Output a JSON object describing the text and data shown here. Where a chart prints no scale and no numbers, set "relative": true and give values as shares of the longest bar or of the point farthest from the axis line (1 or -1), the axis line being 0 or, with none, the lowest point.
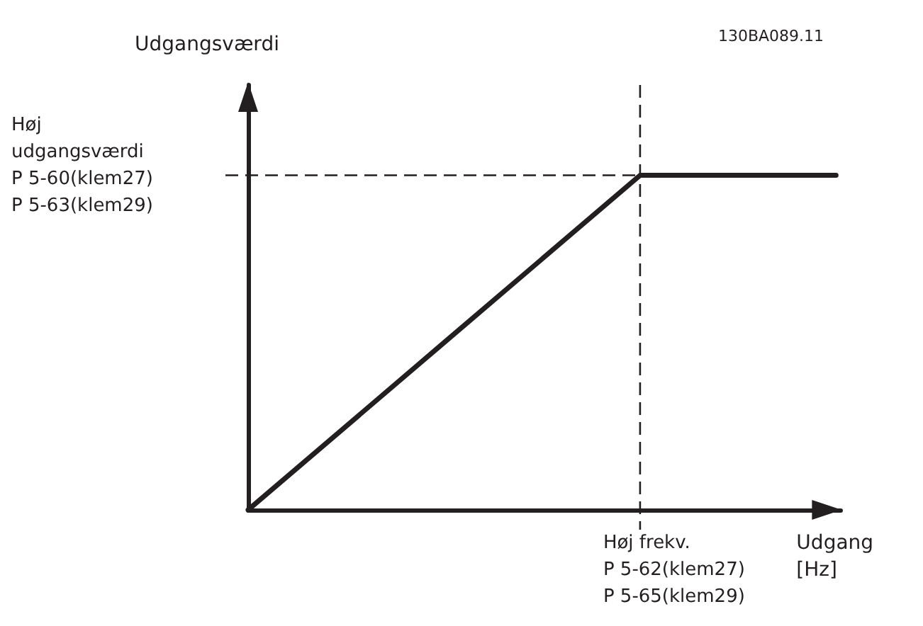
{
  "chart_data": {
    "type": "line",
    "relative": true,
    "grid": false,
    "marker": "none",
    "line_style": "solid",
    "categories": [
      null,
      null,
      null,
      null
    ],
    "series": [
      {
        "color": "#231f20",
        "values": [
          0,
          0.5,
          1,
          1
        ]
      }
    ],
    "xlabel": "Udgang\n[Hz]",
    "ref_lines": [
      {
        "axis": "y",
        "label": "Høj\nudgangsværdi\nP 5-60(klem27)\nP 5-63(klem29)",
        "line_style": "dashed",
        "color": "#231f20"
      },
      {
        "axis": "x",
        "label": "Høj frekv.\nP 5-62(klem27)\nP 5-65(klem29)",
        "line_style": "dashed",
        "color": "#231f20"
      }
    ],
    "annotations": [
      "Udgangsværdi",
      "130BA089.11"
    ]
  }
}
